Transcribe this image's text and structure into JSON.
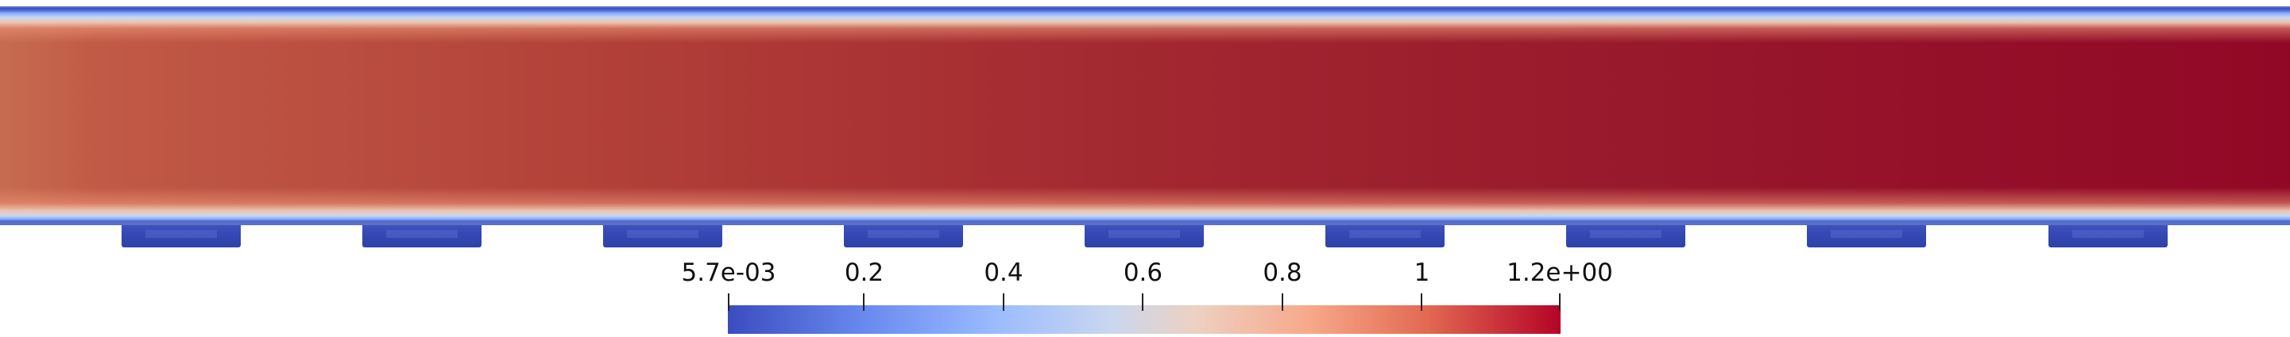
{
  "colorbar": {
    "ticks": [
      {
        "value": 0.0057,
        "label": "5.7e-03"
      },
      {
        "value": 0.2,
        "label": "0.2"
      },
      {
        "value": 0.4,
        "label": "0.4"
      },
      {
        "value": 0.6,
        "label": "0.6"
      },
      {
        "value": 0.8,
        "label": "0.8"
      },
      {
        "value": 1.0,
        "label": "1"
      },
      {
        "value": 1.2,
        "label": "1.2e+00"
      }
    ],
    "range": [
      0.0057,
      1.2
    ],
    "colormap": [
      "#3b4cc0",
      "#9abbff",
      "#dddddd",
      "#f7a889",
      "#b40426"
    ]
  },
  "field": {
    "inlet_color": "#c0644b",
    "outlet_color": "#910826",
    "wall_color": "#3b4cc0"
  },
  "pads": {
    "count": 9,
    "color": "#3548b3"
  }
}
